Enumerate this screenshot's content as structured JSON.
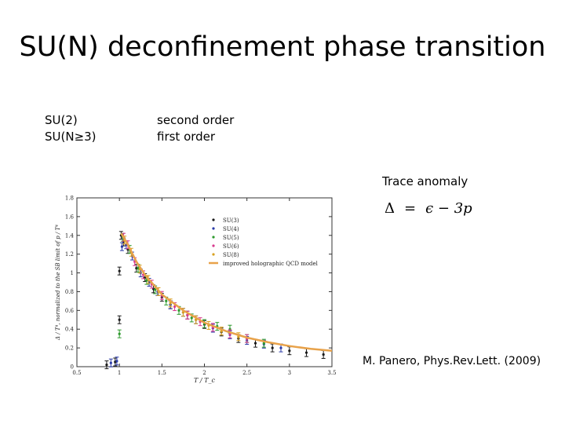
{
  "slide": {
    "title": "SU(N) deconfinement phase transition",
    "groups": [
      "SU(2)",
      "SU(N≥3)"
    ],
    "orders": [
      "second order",
      "first order"
    ],
    "trace_label": "Trace anomaly",
    "formula": {
      "lhs": "Δ",
      "eq": "=",
      "rhs": "ϵ − 3p"
    },
    "citation": "M. Panero, Phys.Rev.Lett. (2009)"
  },
  "chart_data": {
    "type": "scatter",
    "xlabel": "T / T_c",
    "ylabel": "Δ / T⁴, normalized to the SB limit of p / T⁴",
    "xlim": [
      0.5,
      3.5
    ],
    "ylim": [
      0,
      1.8
    ],
    "xticks": [
      0.5,
      1,
      1.5,
      2,
      2.5,
      3,
      3.5
    ],
    "xtick_labels": [
      "0.5",
      "1",
      "1.5",
      "2",
      "2.5",
      "3",
      "3.5"
    ],
    "yticks": [
      0,
      0.2,
      0.4,
      0.6,
      0.8,
      1,
      1.2,
      1.4,
      1.6,
      1.8
    ],
    "ytick_labels": [
      "0",
      "0.2",
      "0.4",
      "0.6",
      "0.8",
      "1",
      "1.2",
      "1.4",
      "1.6",
      "1.8"
    ],
    "legend_position": "top-right",
    "series": [
      {
        "name": "SU(3)",
        "color": "#1a1a1a",
        "x": [
          0.85,
          0.95,
          1.0,
          1.0,
          1.02,
          1.05,
          1.1,
          1.2,
          1.3,
          1.4,
          1.5,
          1.6,
          1.8,
          2.0,
          2.2,
          2.4,
          2.6,
          2.8,
          3.0,
          3.2,
          3.4
        ],
        "y": [
          0.02,
          0.05,
          0.5,
          1.02,
          1.4,
          1.33,
          1.25,
          1.05,
          0.95,
          0.83,
          0.74,
          0.66,
          0.55,
          0.45,
          0.37,
          0.3,
          0.25,
          0.2,
          0.17,
          0.15,
          0.13
        ]
      },
      {
        "name": "SU(4)",
        "color": "#2a3aa8",
        "x": [
          0.9,
          0.97,
          1.03,
          1.08,
          1.15,
          1.25,
          1.35,
          1.45,
          1.6,
          1.75,
          1.9,
          2.1,
          2.3,
          2.5,
          2.7,
          2.9
        ],
        "y": [
          0.04,
          0.06,
          1.28,
          1.3,
          1.18,
          1.0,
          0.9,
          0.8,
          0.66,
          0.58,
          0.5,
          0.41,
          0.34,
          0.28,
          0.24,
          0.2
        ]
      },
      {
        "name": "SU(5)",
        "color": "#2e9a2e",
        "x": [
          1.0,
          1.04,
          1.12,
          1.22,
          1.32,
          1.42,
          1.55,
          1.7,
          1.85,
          2.0,
          2.15,
          2.3,
          2.5,
          2.7
        ],
        "y": [
          0.35,
          1.38,
          1.25,
          1.05,
          0.92,
          0.82,
          0.7,
          0.6,
          0.52,
          0.46,
          0.43,
          0.4,
          0.3,
          0.25
        ]
      },
      {
        "name": "SU(6)",
        "color": "#d83a8e",
        "x": [
          1.05,
          1.1,
          1.18,
          1.28,
          1.38,
          1.5,
          1.65,
          1.8,
          1.95,
          2.1,
          2.3,
          2.5
        ],
        "y": [
          1.38,
          1.3,
          1.12,
          0.98,
          0.88,
          0.76,
          0.64,
          0.55,
          0.48,
          0.42,
          0.35,
          0.3
        ]
      },
      {
        "name": "SU(8)",
        "color": "#d8a020",
        "x": [
          1.06,
          1.14,
          1.24,
          1.34,
          1.46,
          1.6,
          1.75,
          1.9,
          2.05,
          2.2,
          2.4
        ],
        "y": [
          1.35,
          1.22,
          1.04,
          0.93,
          0.8,
          0.68,
          0.58,
          0.5,
          0.44,
          0.38,
          0.32
        ]
      },
      {
        "name": "improved holographic QCD model",
        "color": "#e8a24a",
        "x": [
          1.02,
          1.05,
          1.1,
          1.2,
          1.3,
          1.5,
          1.75,
          2.0,
          2.25,
          2.5,
          2.75,
          3.0,
          3.25,
          3.5
        ],
        "y": [
          1.42,
          1.38,
          1.3,
          1.12,
          0.98,
          0.77,
          0.6,
          0.47,
          0.38,
          0.31,
          0.26,
          0.22,
          0.19,
          0.17
        ]
      }
    ]
  }
}
